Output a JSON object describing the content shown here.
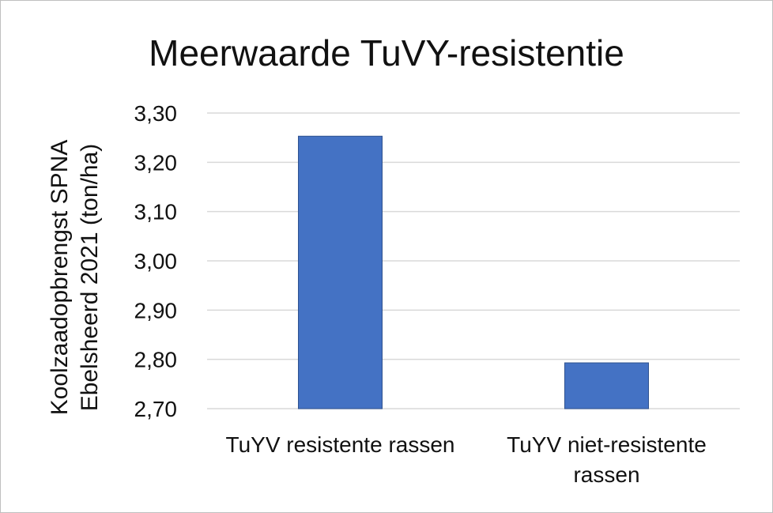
{
  "chart_data": {
    "type": "bar",
    "title": "Meerwaarde TuVY-resistentie",
    "ylabel_lines": [
      "Koolzaadopbrengst SPNA",
      "Ebelsheerd 2021 (ton/ha)"
    ],
    "categories": [
      [
        "TuYV resistente rassen"
      ],
      [
        "TuYV niet-resistente",
        "rassen"
      ]
    ],
    "values": [
      3.253,
      2.793
    ],
    "ylim": [
      2.7,
      3.3
    ],
    "yticks": [
      2.7,
      2.8,
      2.9,
      3.0,
      3.1,
      3.2,
      3.3
    ],
    "ytick_labels": [
      "2,70",
      "2,80",
      "2,90",
      "3,00",
      "3,10",
      "3,20",
      "3,30"
    ],
    "grid": true,
    "colors": {
      "bar": "#4472C4",
      "bar_edge": "#2F528F",
      "grid": "#D9D9D9",
      "text": "#111111"
    }
  }
}
